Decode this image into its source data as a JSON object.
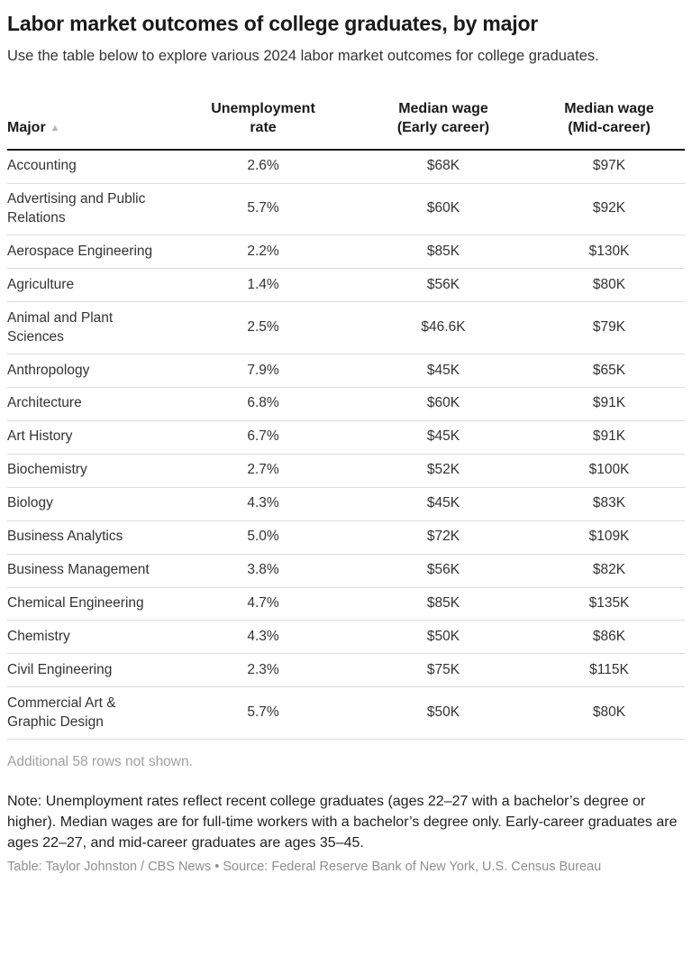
{
  "header": {
    "title": "Labor market outcomes of college graduates, by major",
    "subtitle": "Use the table below to explore various 2024 labor market outcomes for college graduates."
  },
  "table_ui": {
    "column_headers": [
      {
        "label": "Major",
        "sort_indicator": "▲"
      },
      {
        "label": "Unemployment\nrate"
      },
      {
        "label": "Median wage\n(Early career)"
      },
      {
        "label": "Median wage\n(Mid-career)"
      }
    ]
  },
  "chart_data": {
    "type": "table",
    "title": "Labor market outcomes of college graduates, by major",
    "columns": [
      "Major",
      "Unemployment rate",
      "Median wage (Early career)",
      "Median wage (Mid-career)"
    ],
    "rows": [
      {
        "major": "Accounting",
        "unemployment_rate": "2.6%",
        "median_wage_early": "$68K",
        "median_wage_mid": "$97K"
      },
      {
        "major": "Advertising and Public Relations",
        "unemployment_rate": "5.7%",
        "median_wage_early": "$60K",
        "median_wage_mid": "$92K"
      },
      {
        "major": "Aerospace Engineering",
        "unemployment_rate": "2.2%",
        "median_wage_early": "$85K",
        "median_wage_mid": "$130K"
      },
      {
        "major": "Agriculture",
        "unemployment_rate": "1.4%",
        "median_wage_early": "$56K",
        "median_wage_mid": "$80K"
      },
      {
        "major": "Animal and Plant Sciences",
        "unemployment_rate": "2.5%",
        "median_wage_early": "$46.6K",
        "median_wage_mid": "$79K"
      },
      {
        "major": "Anthropology",
        "unemployment_rate": "7.9%",
        "median_wage_early": "$45K",
        "median_wage_mid": "$65K"
      },
      {
        "major": "Architecture",
        "unemployment_rate": "6.8%",
        "median_wage_early": "$60K",
        "median_wage_mid": "$91K"
      },
      {
        "major": "Art History",
        "unemployment_rate": "6.7%",
        "median_wage_early": "$45K",
        "median_wage_mid": "$91K"
      },
      {
        "major": "Biochemistry",
        "unemployment_rate": "2.7%",
        "median_wage_early": "$52K",
        "median_wage_mid": "$100K"
      },
      {
        "major": "Biology",
        "unemployment_rate": "4.3%",
        "median_wage_early": "$45K",
        "median_wage_mid": "$83K"
      },
      {
        "major": "Business Analytics",
        "unemployment_rate": "5.0%",
        "median_wage_early": "$72K",
        "median_wage_mid": "$109K"
      },
      {
        "major": "Business Management",
        "unemployment_rate": "3.8%",
        "median_wage_early": "$56K",
        "median_wage_mid": "$82K"
      },
      {
        "major": "Chemical Engineering",
        "unemployment_rate": "4.7%",
        "median_wage_early": "$85K",
        "median_wage_mid": "$135K"
      },
      {
        "major": "Chemistry",
        "unemployment_rate": "4.3%",
        "median_wage_early": "$50K",
        "median_wage_mid": "$86K"
      },
      {
        "major": "Civil Engineering",
        "unemployment_rate": "2.3%",
        "median_wage_early": "$75K",
        "median_wage_mid": "$115K"
      },
      {
        "major": "Commercial Art & Graphic Design",
        "unemployment_rate": "5.7%",
        "median_wage_early": "$50K",
        "median_wage_mid": "$80K"
      }
    ]
  },
  "footer": {
    "additional_rows_note": "Additional 58 rows not shown.",
    "note": "Note: Unemployment rates reflect recent college graduates (ages 22–27 with a bachelor’s degree or higher). Median wages are for full-time workers with a bachelor’s degree only. Early-career graduates are ages 22–27, and mid-career graduates are ages 35–45.",
    "credit": "Table: Taylor Johnston / CBS News • Source: Federal Reserve Bank of New York, U.S. Census Bureau"
  },
  "colors": {
    "heading": "#1a1a1a",
    "body_text": "#333333",
    "muted_text": "#a0a0a0",
    "row_divider": "#dcdcdc",
    "header_rule": "#1a1a1a",
    "sort_arrow": "#b5b5b5"
  }
}
